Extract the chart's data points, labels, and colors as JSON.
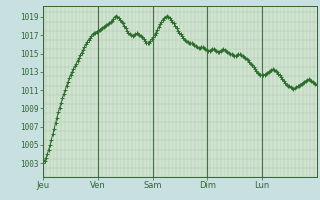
{
  "bg_color": "#c8e0e0",
  "plot_bg_color": "#dbeadb",
  "line_color": "#2d6e2d",
  "marker_color": "#2d6e2d",
  "yticks": [
    1003,
    1005,
    1007,
    1009,
    1011,
    1013,
    1015,
    1017,
    1019
  ],
  "ylim": [
    1001.5,
    1020.2
  ],
  "xtick_labels": [
    "Jeu",
    "Ven",
    "Sam",
    "Dim",
    "Lun"
  ],
  "xtick_positions": [
    0.0,
    0.2,
    0.4,
    0.6,
    0.8
  ],
  "grid_color": "#a8c8a8",
  "vline_color": "#4a6e4a",
  "pressure_data": [
    1003.0,
    1003.3,
    1003.6,
    1004.0,
    1004.5,
    1005.0,
    1005.6,
    1006.2,
    1006.8,
    1007.4,
    1008.0,
    1008.6,
    1009.1,
    1009.6,
    1010.1,
    1010.6,
    1011.0,
    1011.5,
    1011.9,
    1012.3,
    1012.7,
    1013.0,
    1013.3,
    1013.6,
    1013.9,
    1014.2,
    1014.5,
    1014.8,
    1015.1,
    1015.4,
    1015.7,
    1016.0,
    1016.3,
    1016.5,
    1016.7,
    1016.9,
    1017.1,
    1017.2,
    1017.3,
    1017.4,
    1017.5,
    1017.6,
    1017.7,
    1017.8,
    1017.9,
    1018.0,
    1018.1,
    1018.2,
    1018.3,
    1018.4,
    1018.6,
    1018.8,
    1019.0,
    1019.1,
    1019.0,
    1018.9,
    1018.7,
    1018.5,
    1018.3,
    1018.0,
    1017.8,
    1017.5,
    1017.3,
    1017.1,
    1017.0,
    1016.9,
    1017.0,
    1017.1,
    1017.2,
    1017.1,
    1017.0,
    1016.9,
    1016.8,
    1016.6,
    1016.4,
    1016.2,
    1016.1,
    1016.2,
    1016.4,
    1016.6,
    1016.8,
    1017.0,
    1017.3,
    1017.6,
    1017.9,
    1018.2,
    1018.5,
    1018.7,
    1018.9,
    1019.0,
    1019.1,
    1019.0,
    1018.9,
    1018.7,
    1018.5,
    1018.3,
    1018.0,
    1017.8,
    1017.5,
    1017.3,
    1017.1,
    1016.9,
    1016.7,
    1016.5,
    1016.4,
    1016.3,
    1016.2,
    1016.2,
    1016.1,
    1016.0,
    1015.9,
    1015.8,
    1015.7,
    1015.6,
    1015.6,
    1015.7,
    1015.7,
    1015.6,
    1015.5,
    1015.4,
    1015.3,
    1015.3,
    1015.4,
    1015.5,
    1015.5,
    1015.4,
    1015.3,
    1015.2,
    1015.2,
    1015.3,
    1015.4,
    1015.5,
    1015.4,
    1015.3,
    1015.2,
    1015.1,
    1015.0,
    1014.9,
    1014.8,
    1014.7,
    1014.7,
    1014.8,
    1014.9,
    1014.9,
    1014.8,
    1014.7,
    1014.6,
    1014.5,
    1014.4,
    1014.3,
    1014.1,
    1013.9,
    1013.7,
    1013.5,
    1013.3,
    1013.1,
    1012.9,
    1012.8,
    1012.7,
    1012.6,
    1012.6,
    1012.7,
    1012.8,
    1012.9,
    1013.0,
    1013.1,
    1013.2,
    1013.3,
    1013.2,
    1013.1,
    1013.0,
    1012.8,
    1012.6,
    1012.4,
    1012.2,
    1012.0,
    1011.8,
    1011.6,
    1011.5,
    1011.4,
    1011.3,
    1011.2,
    1011.1,
    1011.2,
    1011.3,
    1011.4,
    1011.5,
    1011.6,
    1011.7,
    1011.8,
    1011.9,
    1012.0,
    1012.1,
    1012.2,
    1012.1,
    1012.0,
    1011.9,
    1011.8,
    1011.7,
    1011.6
  ]
}
